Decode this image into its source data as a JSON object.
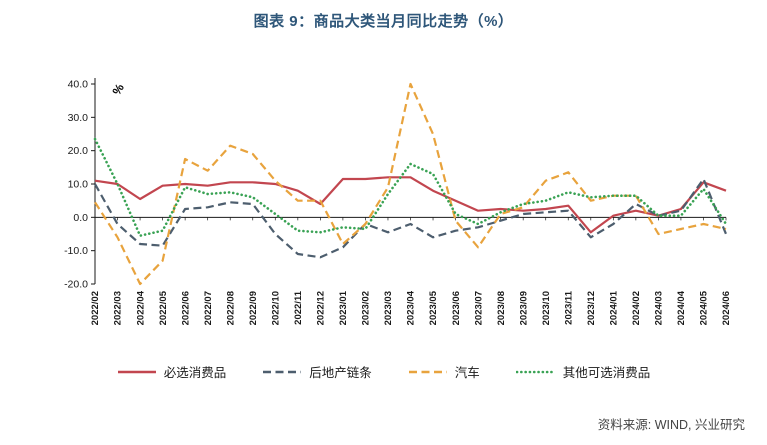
{
  "title": "图表 9：商品大类当月同比走势（%）",
  "source": "资料来源: WIND, 兴业研究",
  "accent_colors": {
    "title": "#2E5679",
    "axis": "#1a1a1a"
  },
  "chart_data": {
    "type": "line",
    "title": "图表 9：商品大类当月同比走势（%）",
    "xlabel": "",
    "ylabel": "%",
    "ylim": [
      -20,
      40
    ],
    "yticks": [
      40,
      30,
      20,
      10,
      0,
      -10,
      -20
    ],
    "grid": false,
    "legend_position": "bottom",
    "categories": [
      "2022/02",
      "2022/03",
      "2022/04",
      "2022/05",
      "2022/06",
      "2022/07",
      "2022/08",
      "2022/09",
      "2022/10",
      "2022/11",
      "2022/12",
      "2023/01",
      "2023/02",
      "2023/03",
      "2023/04",
      "2023/05",
      "2023/06",
      "2023/07",
      "2023/08",
      "2023/09",
      "2023/10",
      "2023/11",
      "2023/12",
      "2024/01",
      "2024/02",
      "2024/03",
      "2024/04",
      "2024/05",
      "2024/06"
    ],
    "series": [
      {
        "name": "必选消费品",
        "style": "solid",
        "color": "#C2464F",
        "values": [
          11,
          10,
          5.5,
          9.5,
          10,
          9.5,
          10.5,
          10.5,
          10,
          8,
          4,
          11.5,
          11.5,
          12,
          12,
          8,
          5,
          2,
          2.5,
          2,
          2.5,
          3.5,
          -4.5,
          0.5,
          2,
          0.5,
          2.5,
          10.5,
          8
        ]
      },
      {
        "name": "后地产链条",
        "style": "dashed",
        "color": "#4D5E6E",
        "values": [
          10,
          -2,
          -8,
          -8.5,
          2.5,
          3,
          4.5,
          4,
          -5,
          -11,
          -12,
          -9,
          -2,
          -4.5,
          -2,
          -6,
          -4,
          -3,
          -1,
          1,
          1.5,
          2,
          -6,
          -2,
          4,
          0.5,
          2,
          11.5,
          -5
        ]
      },
      {
        "name": "汽车",
        "style": "dashed",
        "color": "#E8A33D",
        "values": [
          4.5,
          -6,
          -20,
          -13,
          17.5,
          14,
          21.5,
          19,
          11,
          5,
          5,
          -8,
          -2,
          9,
          40,
          25,
          -1,
          -9,
          1,
          3,
          11,
          13.5,
          5,
          6.5,
          6.5,
          -5,
          -3.5,
          -2,
          -3.5
        ]
      },
      {
        "name": "其他可选消费品",
        "style": "dotted",
        "color": "#39A254",
        "values": [
          23.5,
          10,
          -5.5,
          -4,
          9,
          7,
          7.5,
          6,
          1,
          -4,
          -4.5,
          -3,
          -3.5,
          7,
          16,
          13,
          1,
          -2,
          1.5,
          4,
          5,
          7.5,
          6,
          6.5,
          6.5,
          0.5,
          0.5,
          8.5,
          -2
        ]
      }
    ]
  }
}
